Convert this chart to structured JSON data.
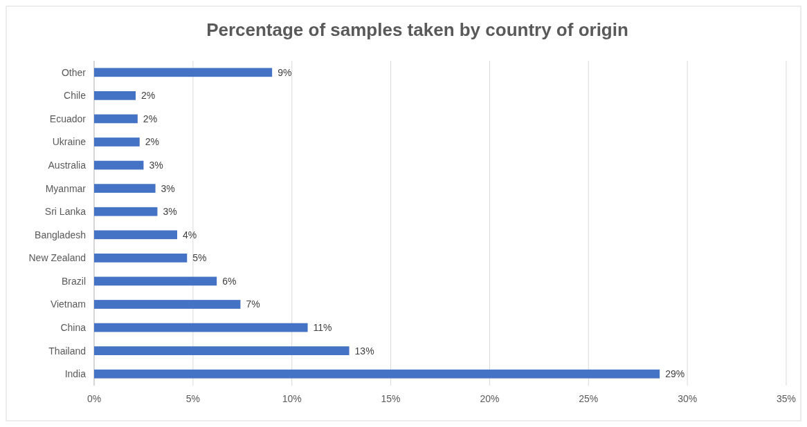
{
  "chart_data": {
    "type": "bar",
    "orientation": "horizontal",
    "title": "Percentage of samples taken by country of origin",
    "categories": [
      "Other",
      "Chile",
      "Ecuador",
      "Ukraine",
      "Australia",
      "Myanmar",
      "Sri Lanka",
      "Bangladesh",
      "New Zealand",
      "Brazil",
      "Vietnam",
      "China",
      "Thailand",
      "India"
    ],
    "values": [
      9.0,
      2.1,
      2.2,
      2.3,
      2.5,
      3.1,
      3.2,
      4.2,
      4.7,
      6.2,
      7.4,
      10.8,
      12.9,
      28.6
    ],
    "value_labels": [
      "9%",
      "2%",
      "2%",
      "2%",
      "3%",
      "3%",
      "3%",
      "4%",
      "5%",
      "6%",
      "7%",
      "11%",
      "13%",
      "29%"
    ],
    "color": "#4472c4",
    "xlim": [
      0,
      35
    ],
    "xticks": [
      {
        "value": 0,
        "label": "0%"
      },
      {
        "value": 5,
        "label": "5%"
      },
      {
        "value": 10,
        "label": "10%"
      },
      {
        "value": 15,
        "label": "15%"
      },
      {
        "value": 20,
        "label": "20%"
      },
      {
        "value": 25,
        "label": "25%"
      },
      {
        "value": 30,
        "label": "30%"
      },
      {
        "value": 35,
        "label": "35%"
      }
    ],
    "grid": "x"
  }
}
